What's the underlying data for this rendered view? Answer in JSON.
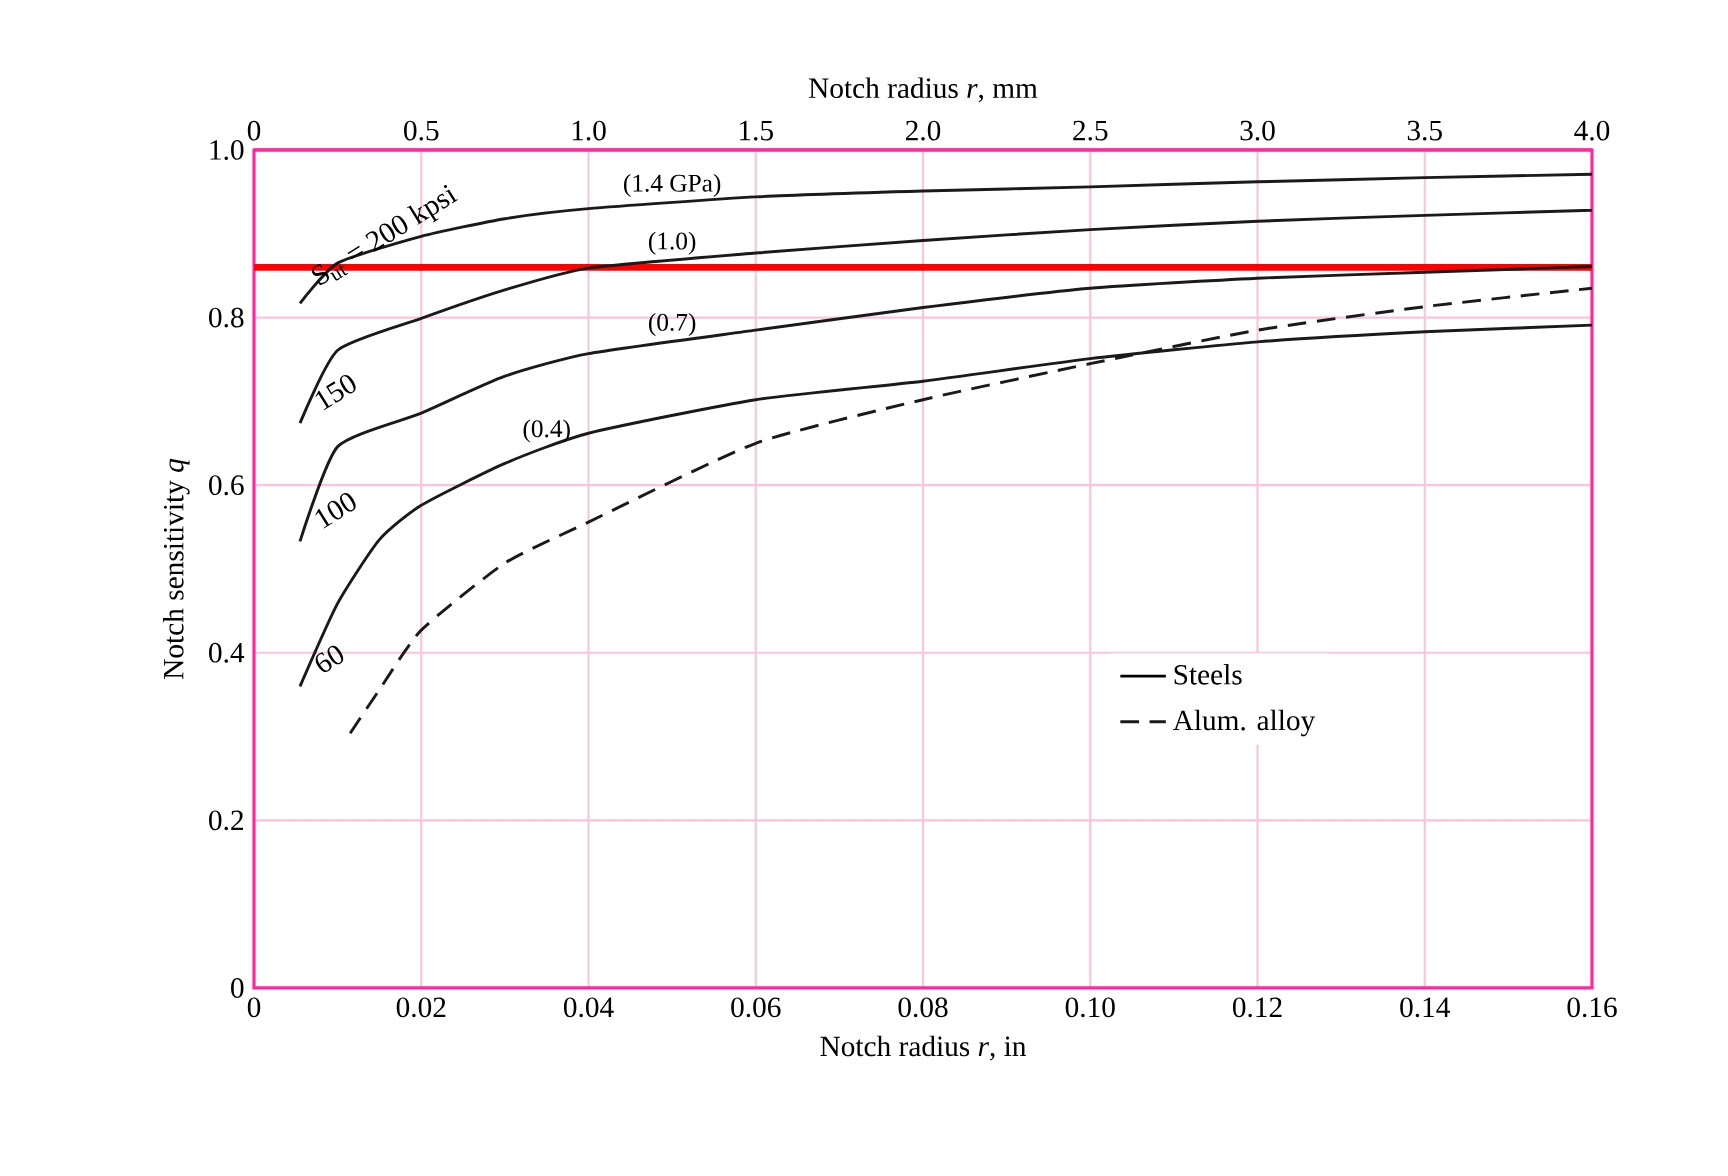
{
  "chart_data": {
    "type": "line",
    "xlabel": "Notch radius *r*, in",
    "ylabel": "Notch sensitivity *q*",
    "x2label": "Notch radius *r*, mm",
    "xlim": [
      0,
      0.16
    ],
    "ylim": [
      0,
      1.0
    ],
    "x2lim": [
      0,
      4.0
    ],
    "xticks": [
      0,
      0.02,
      0.04,
      0.06,
      0.08,
      {
        "value": 0.1,
        "label": "0.10"
      },
      0.12,
      0.14,
      0.16
    ],
    "yticks": [
      0,
      0.2,
      0.4,
      0.6,
      0.8,
      {
        "value": 1.0,
        "label": "1.0"
      }
    ],
    "x2ticks": [
      0,
      0.5,
      {
        "value": 1,
        "label": "1.0"
      },
      1.5,
      {
        "value": 2,
        "label": "2.0"
      },
      2.5,
      {
        "value": 3,
        "label": "3.0"
      },
      3.5,
      {
        "value": 4,
        "label": "4.0"
      }
    ],
    "grid": true,
    "legend": "right",
    "marker": "none",
    "series": [
      {
        "name": "S$_{ut}$ = 200 kpsi",
        "color": "#1a1a1a",
        "line_style": "solid",
        "x": [
          0.0055,
          0.01,
          0.02,
          0.03,
          0.04,
          0.06,
          0.08,
          0.1,
          0.12,
          0.14,
          0.16
        ],
        "values": [
          0.817,
          0.865,
          0.897,
          0.918,
          0.93,
          0.944,
          0.951,
          0.956,
          0.962,
          0.967,
          0.971
        ]
      },
      {
        "name": "150",
        "color": "#1a1a1a",
        "line_style": "solid",
        "x": [
          0.0055,
          0.01,
          0.02,
          0.03,
          0.04,
          0.06,
          0.08,
          0.1,
          0.12,
          0.14,
          0.16
        ],
        "values": [
          0.674,
          0.761,
          0.799,
          0.833,
          0.859,
          0.877,
          0.892,
          0.905,
          0.915,
          0.922,
          0.928
        ]
      },
      {
        "name": "100",
        "color": "#1a1a1a",
        "line_style": "solid",
        "x": [
          0.0055,
          0.01,
          0.02,
          0.03,
          0.04,
          0.06,
          0.08,
          0.1,
          0.12,
          0.14,
          0.16
        ],
        "values": [
          0.533,
          0.646,
          0.686,
          0.73,
          0.757,
          0.785,
          0.812,
          0.835,
          0.847,
          0.854,
          0.861
        ]
      },
      {
        "name": "60",
        "color": "#1a1a1a",
        "line_style": "solid",
        "x": [
          0.0055,
          0.01,
          0.015,
          0.02,
          0.03,
          0.04,
          0.06,
          0.08,
          0.1,
          0.12,
          0.14,
          0.16
        ],
        "values": [
          0.36,
          0.459,
          0.535,
          0.576,
          0.626,
          0.662,
          0.702,
          0.724,
          0.751,
          0.771,
          0.783,
          0.791
        ]
      },
      {
        "name": "Alum. alloy",
        "color": "#1a1a1a",
        "line_style": "dashed",
        "x": [
          0.0115,
          0.015,
          0.02,
          0.03,
          0.04,
          0.06,
          0.08,
          0.1,
          0.12,
          0.14,
          0.16
        ],
        "values": [
          0.304,
          0.356,
          0.427,
          0.507,
          0.556,
          0.65,
          0.702,
          0.745,
          0.785,
          0.813,
          0.835
        ]
      }
    ],
    "annotations": [
      "(1.4 GPa)",
      "(1.0)",
      "(0.7)",
      "(0.4)",
      "Steels"
    ],
    "ref_lines": [
      {
        "axis": "y",
        "value": 0.86,
        "color": "#ff0000"
      }
    ]
  }
}
